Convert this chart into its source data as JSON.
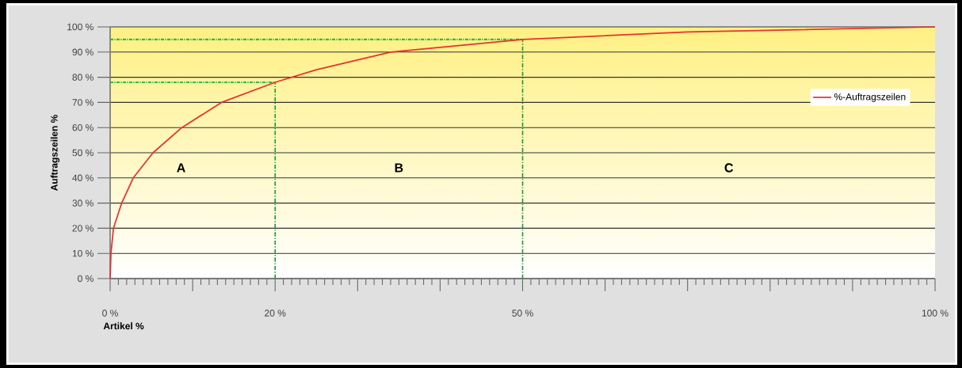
{
  "chart_data": {
    "type": "line",
    "xlabel": "Artikel %",
    "ylabel": "Auftragszeilen %",
    "x": [
      0,
      0.1,
      0.4,
      1.4,
      2.8,
      5.2,
      8.7,
      13.5,
      20,
      25,
      34,
      50,
      70,
      100
    ],
    "series": [
      {
        "name": "%-Auftragszeilen",
        "color": "#e8322d",
        "values": [
          0,
          10,
          20,
          30,
          40,
          50,
          60,
          70,
          78,
          83,
          90,
          95,
          98,
          100
        ]
      }
    ],
    "xlim": [
      0,
      100
    ],
    "ylim": [
      0,
      100
    ],
    "xticks": [
      {
        "value": 0,
        "label": "0 %"
      },
      {
        "value": 10,
        "label": null
      },
      {
        "value": 20,
        "label": "20 %"
      },
      {
        "value": 30,
        "label": null
      },
      {
        "value": 40,
        "label": null
      },
      {
        "value": 50,
        "label": "50 %"
      },
      {
        "value": 60,
        "label": null
      },
      {
        "value": 70,
        "label": null
      },
      {
        "value": 80,
        "label": null
      },
      {
        "value": 90,
        "label": null
      },
      {
        "value": 100,
        "label": "100 %"
      }
    ],
    "yticks": [
      {
        "value": 0,
        "label": "0 %"
      },
      {
        "value": 10,
        "label": "10 %"
      },
      {
        "value": 20,
        "label": "20 %"
      },
      {
        "value": 30,
        "label": "30 %"
      },
      {
        "value": 40,
        "label": "40 %"
      },
      {
        "value": 50,
        "label": "50 %"
      },
      {
        "value": 60,
        "label": "60 %"
      },
      {
        "value": 70,
        "label": "70 %"
      },
      {
        "value": 80,
        "label": "80 %"
      },
      {
        "value": 90,
        "label": "90 %"
      },
      {
        "value": 100,
        "label": "100 %"
      }
    ],
    "grid": "y",
    "legend": "right",
    "marker": "none",
    "line_style": "solid",
    "ref_lines": [
      {
        "axis": "x",
        "value": 20,
        "color": "#1a9a3a",
        "line_style": "dashed"
      },
      {
        "axis": "y",
        "value": 78,
        "color": "#2dbb4a",
        "line_style": "dotted"
      },
      {
        "axis": "x",
        "value": 50,
        "color": "#1a9a3a",
        "line_style": "dashed"
      },
      {
        "axis": "y",
        "value": 95,
        "color": "#2dbb4a",
        "line_style": "dotted"
      }
    ],
    "annotations": [
      "A",
      "B",
      "C"
    ]
  }
}
